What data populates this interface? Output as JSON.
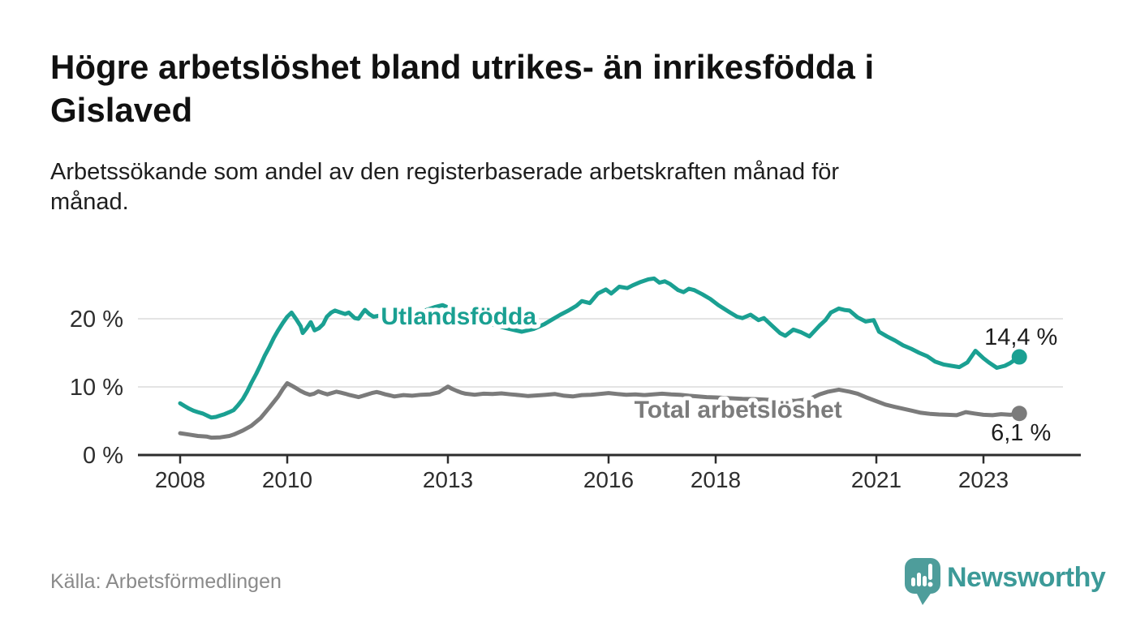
{
  "header": {
    "title_lines": [
      "Högre arbetslöshet bland utrikes- än inrikesfödda i",
      "Gislaved"
    ],
    "subtitle_lines": [
      "Arbetssökande som andel av den registerbaserade arbetskraften månad för",
      "månad."
    ]
  },
  "footer": {
    "source": "Källa: Arbetsförmedlingen",
    "brand": "Newsworthy",
    "brand_icon": "bar-chart-speech-bubble-icon"
  },
  "colors": {
    "series_utlandsfodda": "#1aa092",
    "series_total": "#7b7b7b",
    "grid": "#dcdcdc",
    "axis": "#2d2d2d",
    "tick_text": "#2e2e2e",
    "value_text": "#1d1d1d",
    "brand_bubble": "#4e9d9b",
    "brand_text": "#3c9a98"
  },
  "chart_data": {
    "type": "line",
    "title": "Högre arbetslöshet bland utrikes- än inrikesfödda i Gislaved",
    "xlabel": "",
    "ylabel": "Arbetssökande som andel av den registerbaserade arbetskraften",
    "unit": "%",
    "grid": "horizontal",
    "x_axis": {
      "ticks": [
        2008,
        2010,
        2013,
        2016,
        2018,
        2021,
        2023
      ],
      "min": 2007.2,
      "max": 2024.8
    },
    "y_axis": {
      "ticks": [
        {
          "value": 0,
          "label": "0 %"
        },
        {
          "value": 10,
          "label": "10 %"
        },
        {
          "value": 20,
          "label": "20 %"
        }
      ],
      "min": 0,
      "max": 27
    },
    "series": [
      {
        "id": "utlandsfodda",
        "name": "Utlandsfödda",
        "color": "#1aa092",
        "end_label": "14,4 %",
        "end_value": 14.4,
        "label_anchor": {
          "year": 2013.2,
          "value": 19.17
        },
        "end_label_offset": -15,
        "points": [
          [
            2008.0,
            7.6
          ],
          [
            2008.08,
            7.2
          ],
          [
            2008.17,
            6.8
          ],
          [
            2008.25,
            6.5
          ],
          [
            2008.33,
            6.3
          ],
          [
            2008.42,
            6.1
          ],
          [
            2008.5,
            5.8
          ],
          [
            2008.58,
            5.5
          ],
          [
            2008.67,
            5.6
          ],
          [
            2008.75,
            5.8
          ],
          [
            2008.83,
            6.0
          ],
          [
            2008.92,
            6.3
          ],
          [
            2009.0,
            6.6
          ],
          [
            2009.08,
            7.3
          ],
          [
            2009.17,
            8.2
          ],
          [
            2009.25,
            9.3
          ],
          [
            2009.33,
            10.6
          ],
          [
            2009.42,
            11.9
          ],
          [
            2009.5,
            13.2
          ],
          [
            2009.58,
            14.6
          ],
          [
            2009.67,
            15.9
          ],
          [
            2009.75,
            17.2
          ],
          [
            2009.83,
            18.3
          ],
          [
            2009.92,
            19.4
          ],
          [
            2010.0,
            20.3
          ],
          [
            2010.08,
            20.9
          ],
          [
            2010.17,
            19.9
          ],
          [
            2010.25,
            18.9
          ],
          [
            2010.29,
            17.9
          ],
          [
            2010.36,
            18.6
          ],
          [
            2010.44,
            19.5
          ],
          [
            2010.51,
            18.3
          ],
          [
            2010.59,
            18.6
          ],
          [
            2010.67,
            19.2
          ],
          [
            2010.74,
            20.3
          ],
          [
            2010.82,
            20.9
          ],
          [
            2010.89,
            21.2
          ],
          [
            2011.0,
            20.9
          ],
          [
            2011.08,
            20.7
          ],
          [
            2011.15,
            20.9
          ],
          [
            2011.26,
            20.1
          ],
          [
            2011.33,
            20.0
          ],
          [
            2011.41,
            20.9
          ],
          [
            2011.45,
            21.3
          ],
          [
            2011.53,
            20.7
          ],
          [
            2011.61,
            20.3
          ],
          [
            2011.75,
            20.5
          ],
          [
            2011.9,
            20.4
          ],
          [
            2012.0,
            20.3
          ],
          [
            2012.2,
            20.5
          ],
          [
            2012.4,
            20.8
          ],
          [
            2012.6,
            21.3
          ],
          [
            2012.75,
            21.7
          ],
          [
            2012.9,
            22.0
          ],
          [
            2013.05,
            21.5
          ],
          [
            2013.2,
            20.9
          ],
          [
            2013.4,
            20.3
          ],
          [
            2013.6,
            19.7
          ],
          [
            2013.8,
            19.2
          ],
          [
            2014.0,
            18.8
          ],
          [
            2014.15,
            18.5
          ],
          [
            2014.38,
            18.1
          ],
          [
            2014.6,
            18.5
          ],
          [
            2014.8,
            19.2
          ],
          [
            2014.95,
            19.9
          ],
          [
            2015.1,
            20.6
          ],
          [
            2015.25,
            21.2
          ],
          [
            2015.4,
            21.9
          ],
          [
            2015.5,
            22.6
          ],
          [
            2015.65,
            22.3
          ],
          [
            2015.8,
            23.7
          ],
          [
            2015.95,
            24.3
          ],
          [
            2016.05,
            23.7
          ],
          [
            2016.2,
            24.7
          ],
          [
            2016.35,
            24.5
          ],
          [
            2016.45,
            24.9
          ],
          [
            2016.6,
            25.4
          ],
          [
            2016.75,
            25.8
          ],
          [
            2016.85,
            25.9
          ],
          [
            2016.95,
            25.3
          ],
          [
            2017.05,
            25.5
          ],
          [
            2017.15,
            25.1
          ],
          [
            2017.3,
            24.2
          ],
          [
            2017.4,
            23.9
          ],
          [
            2017.5,
            24.4
          ],
          [
            2017.6,
            24.2
          ],
          [
            2017.75,
            23.6
          ],
          [
            2017.9,
            22.9
          ],
          [
            2018.05,
            22.0
          ],
          [
            2018.15,
            21.5
          ],
          [
            2018.27,
            20.9
          ],
          [
            2018.4,
            20.3
          ],
          [
            2018.5,
            20.1
          ],
          [
            2018.65,
            20.6
          ],
          [
            2018.8,
            19.8
          ],
          [
            2018.9,
            20.1
          ],
          [
            2019.05,
            19.0
          ],
          [
            2019.2,
            17.9
          ],
          [
            2019.3,
            17.5
          ],
          [
            2019.45,
            18.4
          ],
          [
            2019.6,
            18.0
          ],
          [
            2019.75,
            17.4
          ],
          [
            2019.94,
            19.0
          ],
          [
            2020.05,
            19.8
          ],
          [
            2020.15,
            20.9
          ],
          [
            2020.3,
            21.5
          ],
          [
            2020.4,
            21.3
          ],
          [
            2020.5,
            21.2
          ],
          [
            2020.65,
            20.2
          ],
          [
            2020.8,
            19.6
          ],
          [
            2020.95,
            19.8
          ],
          [
            2021.05,
            18.1
          ],
          [
            2021.2,
            17.4
          ],
          [
            2021.35,
            16.8
          ],
          [
            2021.5,
            16.1
          ],
          [
            2021.65,
            15.6
          ],
          [
            2021.8,
            15.0
          ],
          [
            2021.95,
            14.5
          ],
          [
            2022.1,
            13.7
          ],
          [
            2022.25,
            13.3
          ],
          [
            2022.4,
            13.1
          ],
          [
            2022.55,
            12.9
          ],
          [
            2022.7,
            13.6
          ],
          [
            2022.85,
            15.3
          ],
          [
            2023.0,
            14.2
          ],
          [
            2023.1,
            13.6
          ],
          [
            2023.25,
            12.8
          ],
          [
            2023.4,
            13.1
          ],
          [
            2023.5,
            13.5
          ],
          [
            2023.67,
            14.4
          ]
        ]
      },
      {
        "id": "total",
        "name": "Total arbetslöshet",
        "color": "#7b7b7b",
        "end_label": "6,1 %",
        "end_value": 6.1,
        "label_anchor": {
          "year": 2018.42,
          "value": 5.48
        },
        "end_label_offset": 33,
        "points": [
          [
            2008.0,
            3.2
          ],
          [
            2008.17,
            3.0
          ],
          [
            2008.33,
            2.8
          ],
          [
            2008.5,
            2.7
          ],
          [
            2008.58,
            2.55
          ],
          [
            2008.75,
            2.6
          ],
          [
            2008.92,
            2.8
          ],
          [
            2009.0,
            3.0
          ],
          [
            2009.17,
            3.6
          ],
          [
            2009.33,
            4.3
          ],
          [
            2009.5,
            5.4
          ],
          [
            2009.67,
            7.0
          ],
          [
            2009.83,
            8.6
          ],
          [
            2009.92,
            9.7
          ],
          [
            2010.0,
            10.55
          ],
          [
            2010.08,
            10.2
          ],
          [
            2010.17,
            9.8
          ],
          [
            2010.25,
            9.4
          ],
          [
            2010.33,
            9.1
          ],
          [
            2010.42,
            8.85
          ],
          [
            2010.5,
            9.0
          ],
          [
            2010.58,
            9.35
          ],
          [
            2010.67,
            9.1
          ],
          [
            2010.75,
            8.9
          ],
          [
            2010.83,
            9.1
          ],
          [
            2010.92,
            9.3
          ],
          [
            2011.0,
            9.15
          ],
          [
            2011.08,
            9.0
          ],
          [
            2011.17,
            8.8
          ],
          [
            2011.25,
            8.65
          ],
          [
            2011.33,
            8.5
          ],
          [
            2011.42,
            8.7
          ],
          [
            2011.5,
            8.9
          ],
          [
            2011.58,
            9.1
          ],
          [
            2011.67,
            9.25
          ],
          [
            2011.75,
            9.1
          ],
          [
            2011.83,
            8.9
          ],
          [
            2011.92,
            8.75
          ],
          [
            2012.0,
            8.6
          ],
          [
            2012.17,
            8.8
          ],
          [
            2012.33,
            8.7
          ],
          [
            2012.5,
            8.85
          ],
          [
            2012.67,
            8.9
          ],
          [
            2012.83,
            9.2
          ],
          [
            2013.0,
            10.05
          ],
          [
            2013.08,
            9.7
          ],
          [
            2013.17,
            9.4
          ],
          [
            2013.25,
            9.15
          ],
          [
            2013.33,
            9.0
          ],
          [
            2013.5,
            8.85
          ],
          [
            2013.67,
            9.0
          ],
          [
            2013.83,
            8.95
          ],
          [
            2014.0,
            9.05
          ],
          [
            2014.17,
            8.9
          ],
          [
            2014.33,
            8.8
          ],
          [
            2014.5,
            8.65
          ],
          [
            2014.67,
            8.75
          ],
          [
            2014.83,
            8.85
          ],
          [
            2015.0,
            8.95
          ],
          [
            2015.17,
            8.7
          ],
          [
            2015.33,
            8.6
          ],
          [
            2015.5,
            8.8
          ],
          [
            2015.67,
            8.85
          ],
          [
            2015.83,
            8.95
          ],
          [
            2016.0,
            9.1
          ],
          [
            2016.17,
            8.95
          ],
          [
            2016.33,
            8.85
          ],
          [
            2016.5,
            8.9
          ],
          [
            2016.67,
            8.8
          ],
          [
            2016.83,
            8.9
          ],
          [
            2017.0,
            9.0
          ],
          [
            2017.17,
            8.9
          ],
          [
            2017.33,
            8.85
          ],
          [
            2017.5,
            8.7
          ],
          [
            2017.67,
            8.6
          ],
          [
            2017.83,
            8.5
          ],
          [
            2018.0,
            8.45
          ],
          [
            2018.25,
            8.35
          ],
          [
            2018.5,
            8.25
          ],
          [
            2018.75,
            8.2
          ],
          [
            2019.0,
            8.1
          ],
          [
            2019.25,
            8.0
          ],
          [
            2019.5,
            7.95
          ],
          [
            2019.75,
            8.2
          ],
          [
            2019.94,
            8.9
          ],
          [
            2020.1,
            9.3
          ],
          [
            2020.3,
            9.6
          ],
          [
            2020.5,
            9.3
          ],
          [
            2020.65,
            9.0
          ],
          [
            2020.8,
            8.5
          ],
          [
            2021.0,
            7.9
          ],
          [
            2021.17,
            7.4
          ],
          [
            2021.33,
            7.1
          ],
          [
            2021.5,
            6.8
          ],
          [
            2021.67,
            6.5
          ],
          [
            2021.83,
            6.2
          ],
          [
            2022.0,
            6.05
          ],
          [
            2022.17,
            5.95
          ],
          [
            2022.33,
            5.9
          ],
          [
            2022.5,
            5.85
          ],
          [
            2022.67,
            6.3
          ],
          [
            2022.83,
            6.1
          ],
          [
            2023.0,
            5.9
          ],
          [
            2023.17,
            5.85
          ],
          [
            2023.33,
            6.0
          ],
          [
            2023.5,
            5.9
          ],
          [
            2023.67,
            6.1
          ]
        ]
      }
    ]
  }
}
